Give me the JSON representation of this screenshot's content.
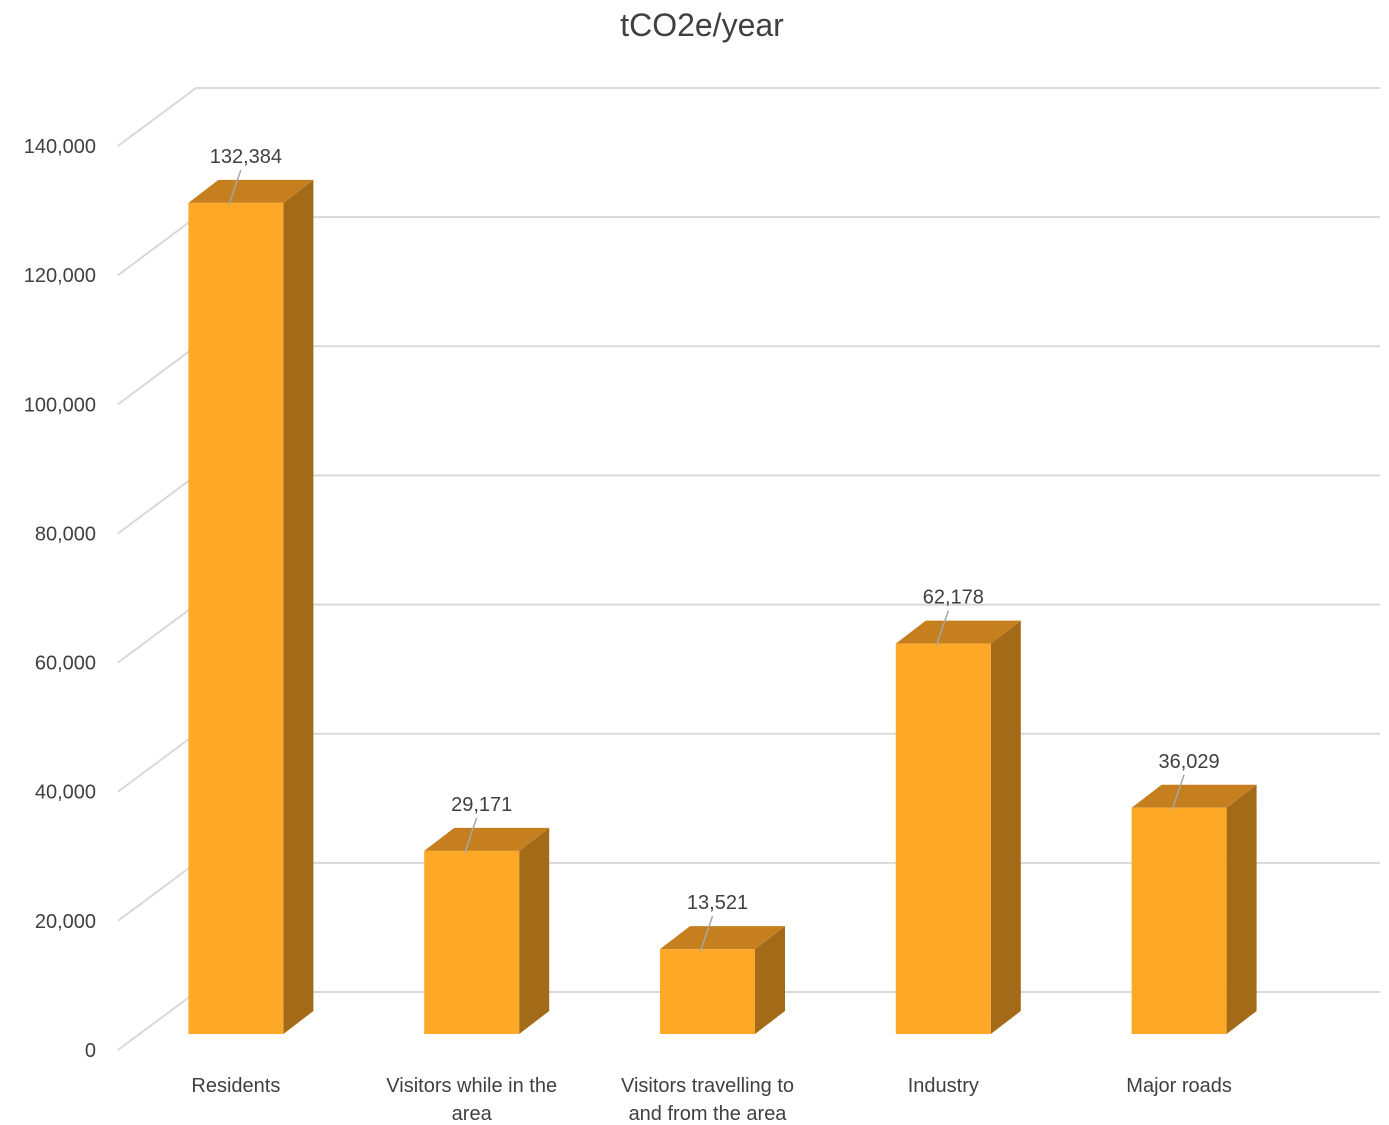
{
  "chart_data": {
    "type": "bar",
    "title": "tCO2e/year",
    "categories": [
      [
        "Residents"
      ],
      [
        "Visitors while in the",
        "area"
      ],
      [
        "Visitors travelling to",
        "and from the area"
      ],
      [
        "Industry"
      ],
      [
        "Major roads"
      ]
    ],
    "values": [
      132384,
      29171,
      13521,
      62178,
      36029
    ],
    "data_labels": [
      "132,384",
      "29,171",
      "13,521",
      "62,178",
      "36,029"
    ],
    "ylim": [
      0,
      140000
    ],
    "yticks": [
      0,
      20000,
      40000,
      60000,
      80000,
      100000,
      120000,
      140000
    ],
    "ytick_labels": [
      "0",
      "20,000",
      "40,000",
      "60,000",
      "80,000",
      "100,000",
      "120,000",
      "140,000"
    ],
    "xlabel": "",
    "ylabel": "",
    "grid": true,
    "legend": "none",
    "style": "3d-column",
    "colors": {
      "front": "#fea828",
      "top": "#c57f1e",
      "side": "#a36b18",
      "grid": "#d9d9d9",
      "text": "#404040"
    }
  }
}
